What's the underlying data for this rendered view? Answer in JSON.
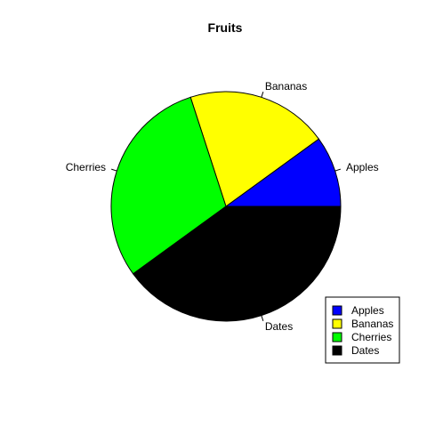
{
  "chart_data": {
    "type": "pie",
    "title": "Fruits",
    "categories": [
      "Apples",
      "Bananas",
      "Cherries",
      "Dates"
    ],
    "values": [
      10,
      20,
      30,
      40
    ],
    "colors": [
      "#0000FF",
      "#FFFF00",
      "#00FF00",
      "#000000"
    ],
    "start_angle_deg": 0,
    "direction": "counterclockwise",
    "legend": {
      "position": "bottom-right",
      "entries": [
        "Apples",
        "Bananas",
        "Cherries",
        "Dates"
      ]
    }
  }
}
